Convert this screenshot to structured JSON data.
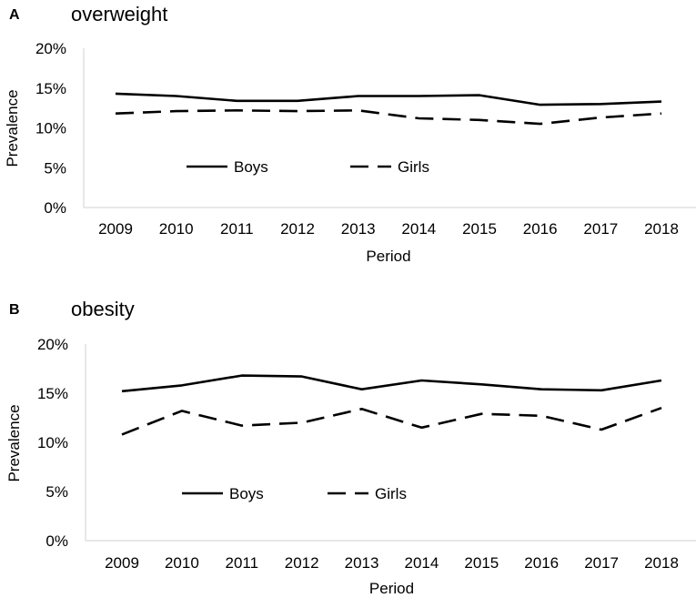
{
  "chart_data": [
    {
      "type": "line",
      "panel": "A",
      "title": "overweight",
      "xlabel": "Period",
      "ylabel": "Prevalence",
      "ylim": [
        0,
        20
      ],
      "y_ticks": [
        "0%",
        "5%",
        "10%",
        "15%",
        "20%"
      ],
      "categories": [
        "2009",
        "2010",
        "2011",
        "2012",
        "2013",
        "2014",
        "2015",
        "2016",
        "2017",
        "2018"
      ],
      "series": [
        {
          "name": "Boys",
          "style": "solid",
          "values": [
            14.3,
            14.0,
            13.4,
            13.4,
            14.0,
            14.0,
            14.1,
            12.9,
            13.0,
            13.3
          ]
        },
        {
          "name": "Girls",
          "style": "dashed",
          "values": [
            11.8,
            12.1,
            12.2,
            12.1,
            12.2,
            11.2,
            11.0,
            10.5,
            11.3,
            11.8
          ]
        }
      ],
      "legend": "inside-bottom-left"
    },
    {
      "type": "line",
      "panel": "B",
      "title": "obesity",
      "xlabel": "Period",
      "ylabel": "Prevalence",
      "ylim": [
        0,
        20
      ],
      "y_ticks": [
        "0%",
        "5%",
        "10%",
        "15%",
        "20%"
      ],
      "categories": [
        "2009",
        "2010",
        "2011",
        "2012",
        "2013",
        "2014",
        "2015",
        "2016",
        "2017",
        "2018"
      ],
      "series": [
        {
          "name": "Boys",
          "style": "solid",
          "values": [
            15.2,
            15.8,
            16.8,
            16.7,
            15.4,
            16.3,
            15.9,
            15.4,
            15.3,
            16.3
          ]
        },
        {
          "name": "Girls",
          "style": "dashed",
          "values": [
            10.8,
            13.2,
            11.7,
            12.0,
            13.4,
            11.5,
            12.9,
            12.7,
            11.3,
            13.5
          ]
        }
      ],
      "legend": "inside-bottom-left"
    }
  ],
  "colors": {
    "line": "#000000",
    "axis": "#d0d0d0",
    "text": "#000000"
  }
}
